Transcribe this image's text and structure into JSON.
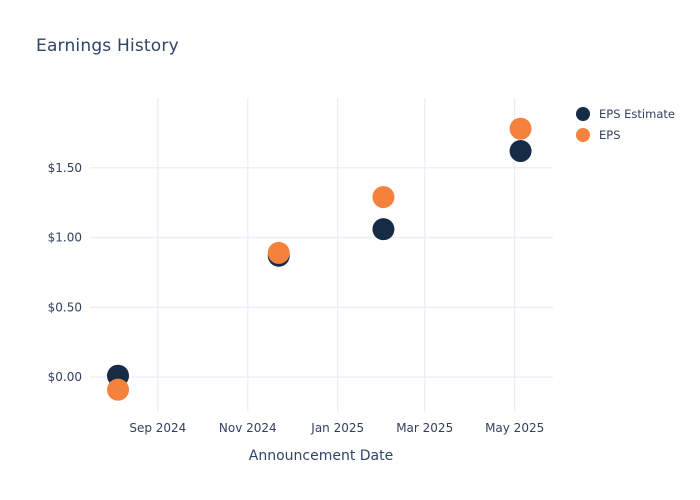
{
  "page": {
    "title": "Earnings History"
  },
  "colors": {
    "eps_estimate": "#162B45",
    "eps": "#F4813C",
    "grid": "#EAEEF6",
    "title_text": "#2E4468",
    "tick_text": "#32415F",
    "background": "#FFFFFF"
  },
  "legend": {
    "position": "right",
    "items": [
      {
        "label": "EPS Estimate",
        "color": "#162B45"
      },
      {
        "label": "EPS",
        "color": "#F4813C"
      }
    ]
  },
  "chart_data": {
    "type": "scatter",
    "title": "Earnings History",
    "xlabel": "Announcement Date",
    "ylabel": "",
    "grid": true,
    "legend_position": "right",
    "x_domain": [
      "2024-07-17",
      "2025-05-27"
    ],
    "y_domain": [
      -0.25,
      2.0
    ],
    "x_ticks": [
      {
        "date": "2024-09-01",
        "label": "Sep 2024"
      },
      {
        "date": "2024-11-01",
        "label": "Nov 2024"
      },
      {
        "date": "2025-01-01",
        "label": "Jan 2025"
      },
      {
        "date": "2025-03-01",
        "label": "Mar 2025"
      },
      {
        "date": "2025-05-01",
        "label": "May 2025"
      }
    ],
    "y_ticks": [
      {
        "value": 0.0,
        "label": "$0.00"
      },
      {
        "value": 0.5,
        "label": "$0.50"
      },
      {
        "value": 1.0,
        "label": "$1.00"
      },
      {
        "value": 1.5,
        "label": "$1.50"
      }
    ],
    "series": [
      {
        "name": "EPS Estimate",
        "color": "#162B45",
        "marker_diameter": 22,
        "points": [
          {
            "date": "2024-08-05",
            "value": 0.01
          },
          {
            "date": "2024-11-22",
            "value": 0.87
          },
          {
            "date": "2025-02-01",
            "value": 1.06
          },
          {
            "date": "2025-05-05",
            "value": 1.62
          }
        ]
      },
      {
        "name": "EPS",
        "color": "#F4813C",
        "marker_diameter": 22,
        "points": [
          {
            "date": "2024-08-05",
            "value": -0.09
          },
          {
            "date": "2024-11-22",
            "value": 0.89
          },
          {
            "date": "2025-02-01",
            "value": 1.29
          },
          {
            "date": "2025-05-05",
            "value": 1.78
          }
        ]
      }
    ]
  }
}
